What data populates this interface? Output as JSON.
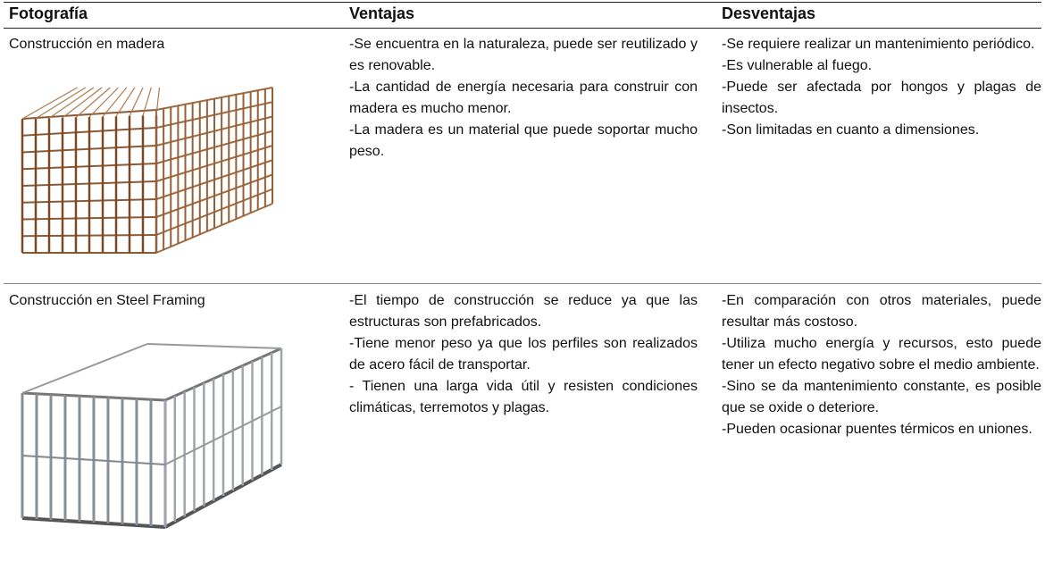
{
  "table": {
    "headers": [
      "Fotografía",
      "Ventajas",
      "Desventajas"
    ],
    "rows": [
      {
        "photo": "Construcción en madera",
        "advantages": [
          "-Se encuentra en la naturaleza, puede ser reutilizado y es renovable.",
          "-La cantidad de energía necesaria para construir con madera es mucho menor.",
          "-La madera es un material que puede soportar mucho peso."
        ],
        "disadvantages": [
          "-Se requiere realizar un mantenimiento periódico.",
          "-Es vulnerable al fuego.",
          "-Puede ser afectada por hongos y plagas de insectos.",
          "-Son limitadas en cuanto a dimensiones."
        ]
      },
      {
        "photo": "Construcción en Steel Framing",
        "advantages": [
          "-El tiempo de construcción se reduce ya que las estructuras son prefabricados.",
          "-Tiene menor peso ya que los perfiles son realizados de acero fácil de transportar.",
          "- Tienen una larga vida útil y resisten condiciones climáticas, terremotos y plagas."
        ],
        "disadvantages": [
          "-En comparación con otros materiales, puede resultar más costoso.",
          "-Utiliza mucho energía y recursos, esto puede tener un efecto negativo sobre el medio ambiente.",
          "-Sino se da mantenimiento constante, es posible que se oxide o deteriore.",
          "-Pueden ocasionar puentes térmicos en uniones."
        ]
      }
    ]
  }
}
